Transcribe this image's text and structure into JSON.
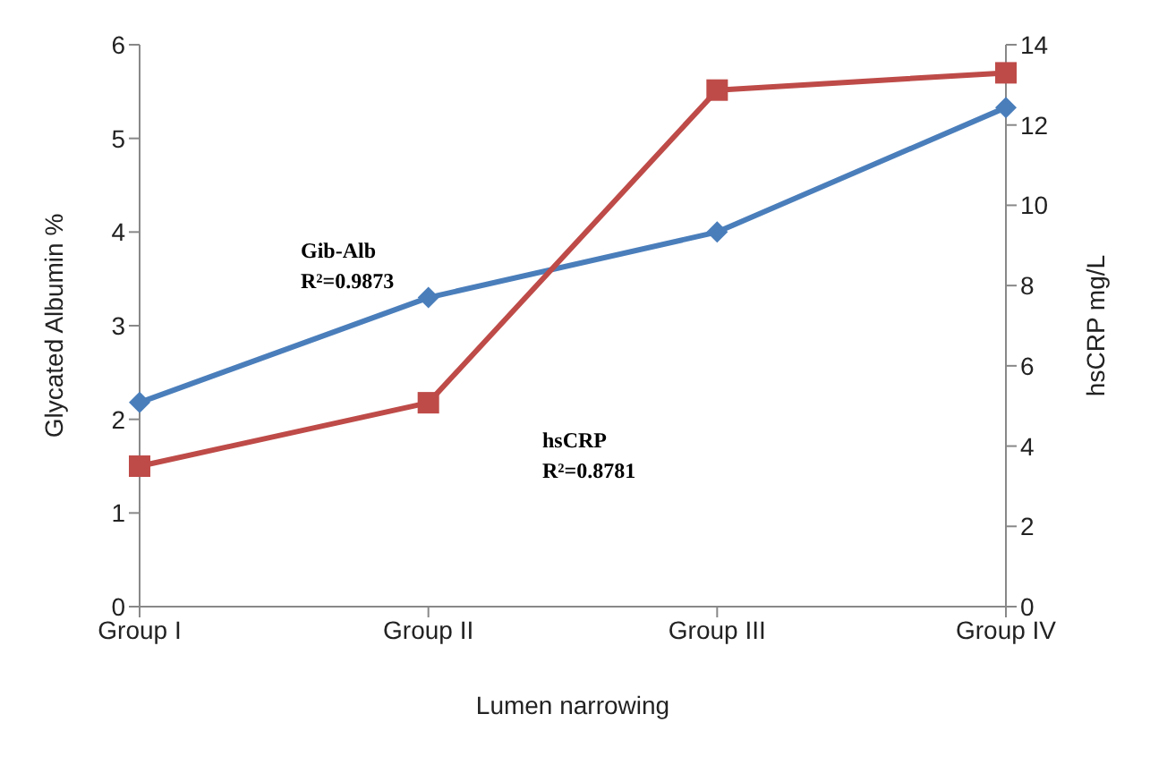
{
  "chart_data": {
    "type": "line",
    "xlabel": "Lumen narrowing",
    "ylabel": "Glycated Albumin %",
    "y2label": "hsCRP mg/L",
    "categories": [
      "Group I",
      "Group II",
      "Group III",
      "Group IV"
    ],
    "series": [
      {
        "color": "#4a7ebb",
        "marker": "diamond",
        "values": [
          2.18,
          3.3,
          4.0,
          5.33
        ]
      },
      {
        "color": "#be4b48",
        "marker": "square",
        "axis": "y2",
        "values": [
          3.5,
          5.08,
          12.87,
          13.3
        ]
      }
    ],
    "ylim": [
      0,
      6
    ],
    "yticks": [
      0,
      1,
      2,
      3,
      4,
      5,
      6
    ],
    "y2lim": [
      0,
      14
    ],
    "y2ticks": [
      0,
      2,
      4,
      6,
      8,
      10,
      12,
      14
    ],
    "grid": false,
    "legend": false,
    "annotations": [
      "Gib-Alb\nR²=0.9873",
      "hsCRP\nR²=0.8781"
    ]
  }
}
